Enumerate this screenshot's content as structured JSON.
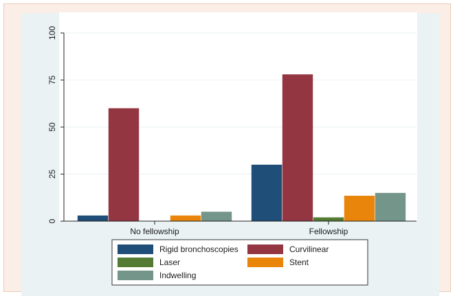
{
  "chart_data": {
    "type": "bar",
    "title": "",
    "xlabel": "",
    "ylabel": "",
    "ylim": [
      0,
      100
    ],
    "yticks": [
      0,
      25,
      50,
      75,
      100
    ],
    "grid": true,
    "legend_position": "bottom",
    "categories": [
      "No fellowship",
      "Fellowship"
    ],
    "series": [
      {
        "name": "Rigid bronchoscopies",
        "color": "#1f4e79",
        "values": [
          3,
          30
        ]
      },
      {
        "name": "Curvilinear",
        "color": "#943641",
        "values": [
          60,
          78
        ]
      },
      {
        "name": "Laser",
        "color": "#537b34",
        "values": [
          0,
          2
        ]
      },
      {
        "name": "Stent",
        "color": "#e8850a",
        "values": [
          3,
          13.5
        ]
      },
      {
        "name": "Indwelling",
        "color": "#74958a",
        "values": [
          5,
          15
        ]
      }
    ]
  }
}
